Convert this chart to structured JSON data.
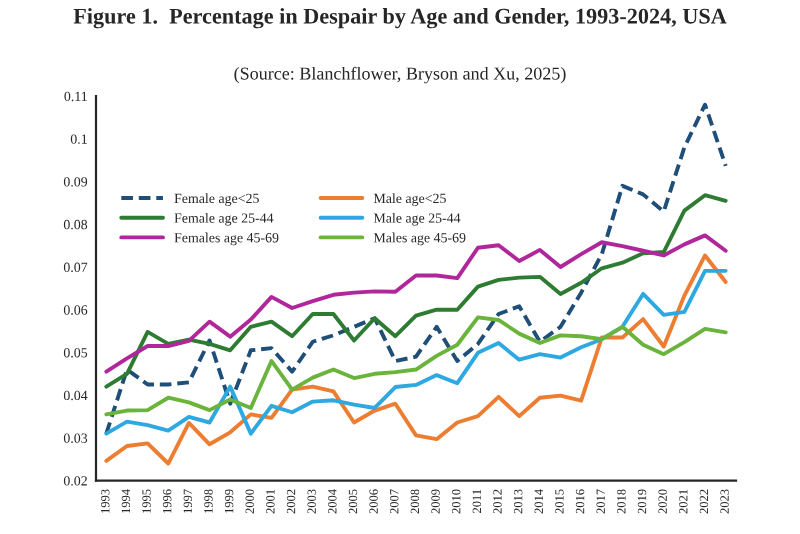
{
  "chart_data": {
    "type": "line",
    "title": "Figure 1.  Percentage in Despair by Age and Gender, 1993-2024, USA",
    "subtitle": "(Source: Blanchflower, Bryson and Xu, 2025)",
    "categories": [
      "1993",
      "1994",
      "1995",
      "1996",
      "1997",
      "1998",
      "1999",
      "2000",
      "2001",
      "2002",
      "2003",
      "2004",
      "2005",
      "2006",
      "2007",
      "2008",
      "2009",
      "2010",
      "2011",
      "2012",
      "2013",
      "2014",
      "2015",
      "2016",
      "2017",
      "2018",
      "2019",
      "2020",
      "2021",
      "2022",
      "2023"
    ],
    "series": [
      {
        "name": "Female age<25",
        "color": "#1f4e79",
        "line_style": "dashed",
        "values": [
          0.031,
          0.046,
          0.0425,
          0.0425,
          0.043,
          0.0528,
          0.038,
          0.0505,
          0.051,
          0.0455,
          0.0525,
          0.054,
          0.056,
          0.058,
          0.048,
          0.049,
          0.056,
          0.048,
          0.052,
          0.059,
          0.0608,
          0.0525,
          0.056,
          0.064,
          0.073,
          0.089,
          0.087,
          0.083,
          0.098,
          0.108,
          0.0937
        ]
      },
      {
        "name": "Female age 25-44",
        "color": "#2e7b32",
        "line_style": "solid",
        "values": [
          0.042,
          0.045,
          0.0548,
          0.052,
          0.053,
          0.052,
          0.0505,
          0.056,
          0.0572,
          0.0538,
          0.059,
          0.059,
          0.0528,
          0.058,
          0.0538,
          0.0586,
          0.06,
          0.06,
          0.0654,
          0.067,
          0.0675,
          0.0677,
          0.0637,
          0.0663,
          0.0697,
          0.071,
          0.0732,
          0.0735,
          0.0832,
          0.0868,
          0.0855
        ]
      },
      {
        "name": "Females age 45-69",
        "color": "#b0279c",
        "line_style": "solid",
        "values": [
          0.0455,
          0.0486,
          0.0515,
          0.0515,
          0.0527,
          0.0572,
          0.0537,
          0.0577,
          0.063,
          0.0604,
          0.062,
          0.0635,
          0.064,
          0.0643,
          0.0642,
          0.068,
          0.068,
          0.0674,
          0.0745,
          0.0751,
          0.0714,
          0.074,
          0.07,
          0.073,
          0.0758,
          0.0749,
          0.0738,
          0.0727,
          0.0753,
          0.0774,
          0.0738
        ]
      },
      {
        "name": "Male age<25",
        "color": "#ed7d31",
        "line_style": "solid",
        "values": [
          0.0246,
          0.0281,
          0.0287,
          0.024,
          0.0335,
          0.0285,
          0.0313,
          0.0355,
          0.0347,
          0.0413,
          0.042,
          0.0409,
          0.0336,
          0.0364,
          0.038,
          0.0306,
          0.0297,
          0.0336,
          0.0351,
          0.0396,
          0.0351,
          0.0394,
          0.0399,
          0.0387,
          0.0535,
          0.0535,
          0.0578,
          0.0514,
          0.0633,
          0.0727,
          0.0665
        ]
      },
      {
        "name": "Male age 25-44",
        "color": "#2ea8e0",
        "line_style": "solid",
        "values": [
          0.031,
          0.0338,
          0.033,
          0.0317,
          0.0349,
          0.0336,
          0.042,
          0.031,
          0.0375,
          0.036,
          0.0385,
          0.0388,
          0.0378,
          0.037,
          0.0419,
          0.0424,
          0.0447,
          0.0428,
          0.0499,
          0.0522,
          0.0483,
          0.0496,
          0.0488,
          0.0512,
          0.0531,
          0.056,
          0.0637,
          0.0588,
          0.0595,
          0.0691,
          0.0691
        ]
      },
      {
        "name": "Males age 45-69",
        "color": "#6ab43c",
        "line_style": "solid",
        "values": [
          0.0355,
          0.0364,
          0.0365,
          0.0394,
          0.0383,
          0.0365,
          0.039,
          0.037,
          0.048,
          0.0413,
          0.0441,
          0.046,
          0.044,
          0.045,
          0.0454,
          0.046,
          0.0492,
          0.0518,
          0.0582,
          0.0576,
          0.0544,
          0.0522,
          0.054,
          0.0538,
          0.0531,
          0.056,
          0.0518,
          0.0496,
          0.0524,
          0.0555,
          0.0547
        ]
      }
    ],
    "ylim": [
      0.02,
      0.11
    ],
    "yticks": [
      0.02,
      0.03,
      0.04,
      0.05,
      0.06,
      0.07,
      0.08,
      0.09,
      0.1,
      0.11
    ],
    "legend": "top left",
    "grid": false
  }
}
